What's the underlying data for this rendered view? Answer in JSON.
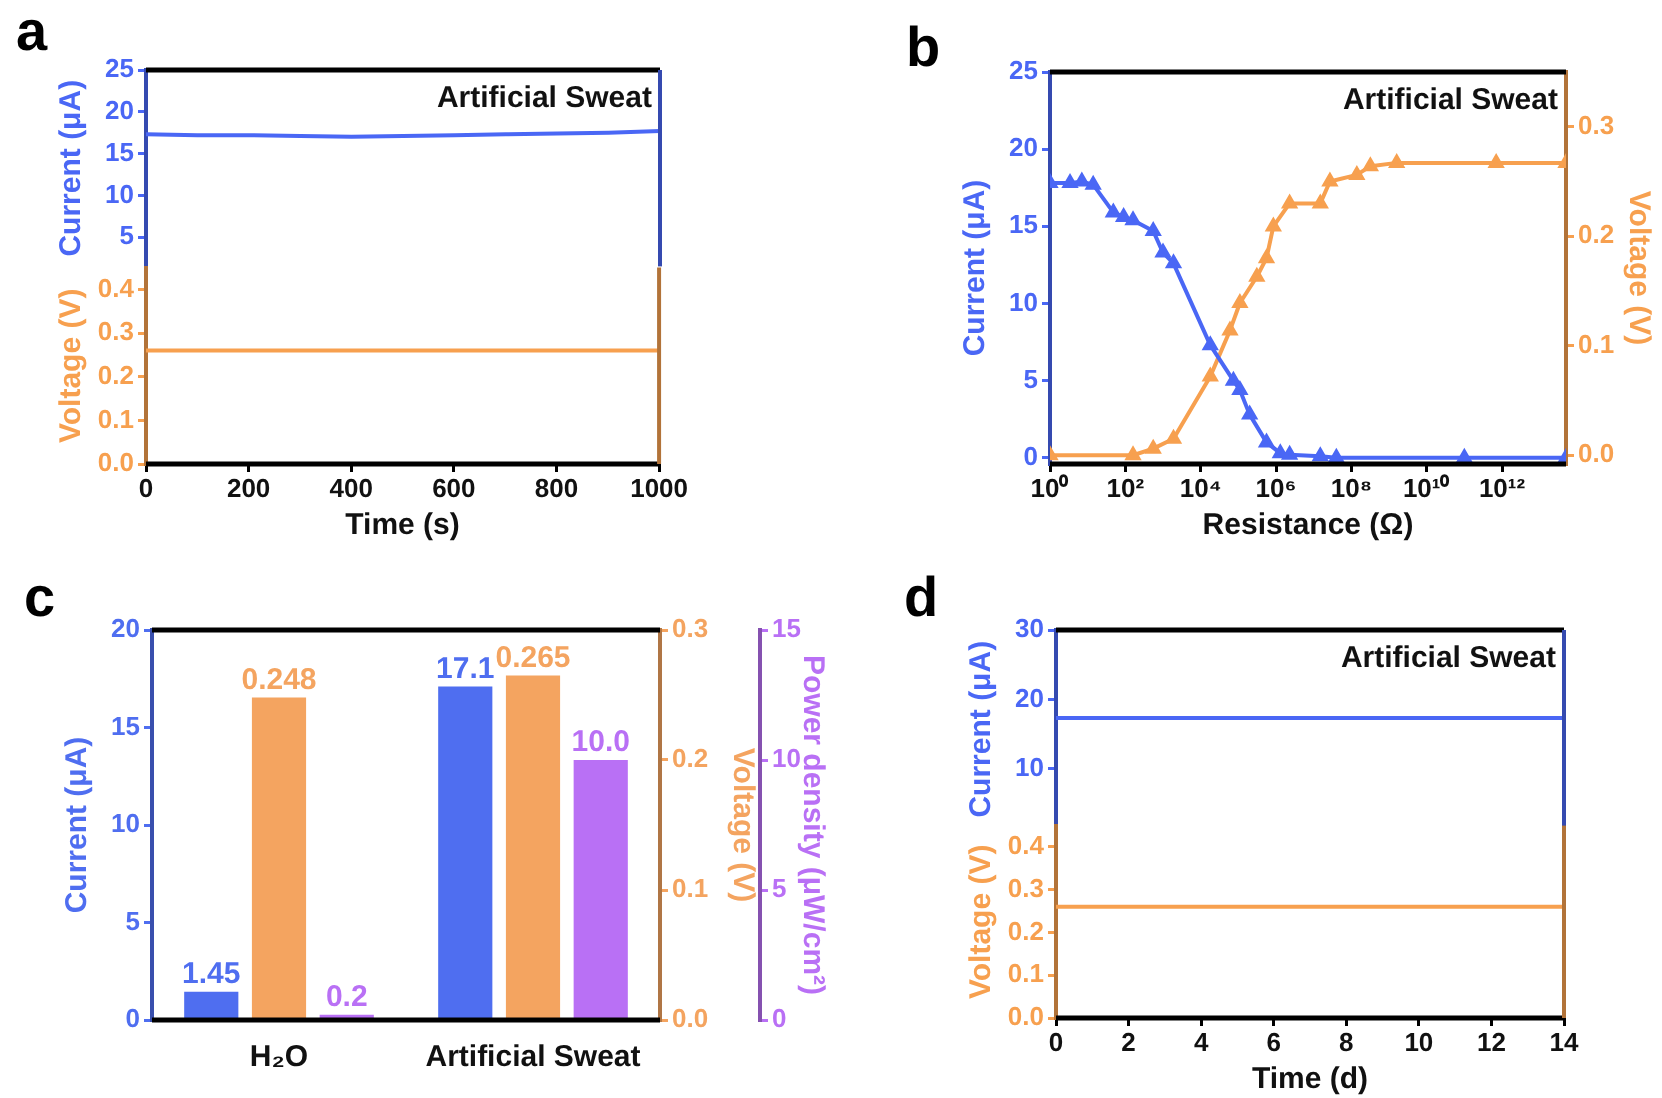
{
  "chart_data": [
    {
      "type": "line",
      "title": "a",
      "annotations": [
        "Artificial Sweat"
      ],
      "ylabel": "Current (μA)",
      "tick_labels": "y",
      "xlim": [
        0,
        1000
      ],
      "ylim": [
        1.5,
        25
      ],
      "yticks": [
        5,
        10,
        15,
        20,
        25
      ],
      "series": [
        {
          "color": "#4a67f5",
          "x": [
            0,
            100,
            200,
            300,
            400,
            500,
            600,
            700,
            800,
            900,
            1000
          ],
          "values": [
            17.3,
            17.2,
            17.2,
            17.1,
            17.0,
            17.1,
            17.2,
            17.3,
            17.4,
            17.5,
            17.7
          ]
        }
      ]
    },
    {
      "type": "line",
      "xlabel": "Time (s)",
      "ylabel": "Voltage (V)",
      "xlim": [
        0,
        1000
      ],
      "xticks": [
        0,
        200,
        400,
        600,
        800,
        1000
      ],
      "ylim": [
        0,
        0.45
      ],
      "yticks": [
        {
          "value": 0,
          "label": "0.0"
        },
        0.1,
        0.2,
        0.3,
        0.4
      ],
      "series": [
        {
          "color": "#f7a04f",
          "x": [
            0,
            500,
            1000
          ],
          "values": [
            0.26,
            0.26,
            0.26
          ]
        }
      ]
    },
    {
      "type": "line",
      "title": "b",
      "annotations": [
        "Artificial Sweat"
      ],
      "xlabel": "Resistance (Ω)",
      "ylabel": "Current (μA)",
      "y2label": "Voltage (V)",
      "log": "x",
      "marker": "triangle",
      "xlim": [
        1,
        50000000000000
      ],
      "xticks": [
        {
          "value": 1,
          "label": "10⁰"
        },
        {
          "value": 100,
          "label": "10²"
        },
        {
          "value": 10000,
          "label": "10⁴"
        },
        {
          "value": 1000000,
          "label": "10⁶"
        },
        {
          "value": 100000000,
          "label": "10⁸"
        },
        {
          "value": 10000000000,
          "label": "10¹⁰"
        },
        {
          "value": 1000000000000,
          "label": "10¹²"
        }
      ],
      "ylim": [
        -0.4,
        25
      ],
      "yticks": [
        0,
        5,
        10,
        15,
        20,
        25
      ],
      "y2lim": [
        -0.008,
        0.35
      ],
      "y2ticks": [
        {
          "value": 0,
          "label": "0.0"
        },
        0.1,
        0.2,
        0.3
      ],
      "series": [
        {
          "color": "#4a67f5",
          "x": [
            1,
            3.4,
            7,
            14,
            48,
            90,
            160,
            550,
            1000,
            1900,
            18000,
            74000,
            110000,
            200000,
            560000,
            1300000,
            2300000,
            15000000,
            40000000,
            100000000000,
            50000000000000
          ],
          "values": [
            17.8,
            17.8,
            17.9,
            17.7,
            15.9,
            15.6,
            15.4,
            14.7,
            13.3,
            12.6,
            7.3,
            5.0,
            4.4,
            2.8,
            1.0,
            0.3,
            0.2,
            0.1,
            0,
            0,
            0
          ]
        },
        {
          "color": "#f7a04f",
          "axis": "y2",
          "x": [
            1,
            160,
            550,
            1900,
            18000,
            60000,
            110000,
            310000,
            560000,
            850000,
            2300000,
            15000000,
            27000000,
            140000000,
            320000000,
            1600000000,
            700000000000,
            50000000000000
          ],
          "values": [
            0,
            0,
            0.006,
            0.015,
            0.072,
            0.114,
            0.139,
            0.163,
            0.18,
            0.209,
            0.23,
            0.23,
            0.25,
            0.256,
            0.264,
            0.267,
            0.267,
            0.267
          ]
        }
      ]
    },
    {
      "type": "bar",
      "title": "c",
      "categories": [
        "H₂O",
        "Artificial Sweat"
      ],
      "ylabel": "Current (μA)",
      "y2label": "Voltage (V)",
      "y3label": "Power density (μW/cm²)",
      "ylim": [
        0,
        20
      ],
      "yticks": [
        0,
        5,
        10,
        15,
        20
      ],
      "y2lim": [
        0,
        0.3
      ],
      "y2ticks": [
        {
          "value": 0,
          "label": "0.0"
        },
        0.1,
        0.2,
        0.3
      ],
      "y3lim": [
        0,
        15
      ],
      "y3ticks": [
        0,
        5,
        10,
        15
      ],
      "series": [
        {
          "color": "#4f6ef0",
          "values": [
            1.45,
            17.1
          ],
          "value_labels": [
            "1.45",
            "17.1"
          ]
        },
        {
          "color": "#f4a460",
          "axis": "y2",
          "values": [
            0.248,
            0.265
          ],
          "value_labels": [
            "0.248",
            "0.265"
          ]
        },
        {
          "color": "#b970f5",
          "axis": "y3",
          "values": [
            0.2,
            10.0
          ],
          "value_labels": [
            "0.2",
            "10.0"
          ]
        }
      ]
    },
    {
      "type": "line",
      "title": "d",
      "annotations": [
        "Artificial Sweat"
      ],
      "ylabel": "Current (μA)",
      "tick_labels": "y",
      "xlim": [
        0,
        14
      ],
      "ylim": [
        1.4,
        30
      ],
      "yticks": [
        10,
        20,
        30
      ],
      "series": [
        {
          "color": "#4a67f5",
          "x": [
            0,
            2,
            4,
            6,
            8,
            10,
            12,
            14
          ],
          "values": [
            17.3,
            17.3,
            17.3,
            17.3,
            17.3,
            17.3,
            17.3,
            17.3
          ]
        }
      ]
    },
    {
      "type": "line",
      "xlabel": "Time (d)",
      "ylabel": "Voltage (V)",
      "xlim": [
        0,
        14
      ],
      "xticks": [
        0,
        2,
        4,
        6,
        8,
        10,
        12,
        14
      ],
      "ylim": [
        0,
        0.45
      ],
      "yticks": [
        {
          "value": 0,
          "label": "0.0"
        },
        0.1,
        0.2,
        0.3,
        0.4
      ],
      "series": [
        {
          "color": "#f7a04f",
          "x": [
            0,
            2,
            4,
            6,
            8,
            10,
            12,
            14
          ],
          "values": [
            0.26,
            0.26,
            0.26,
            0.26,
            0.26,
            0.26,
            0.26,
            0.26
          ]
        }
      ]
    }
  ]
}
